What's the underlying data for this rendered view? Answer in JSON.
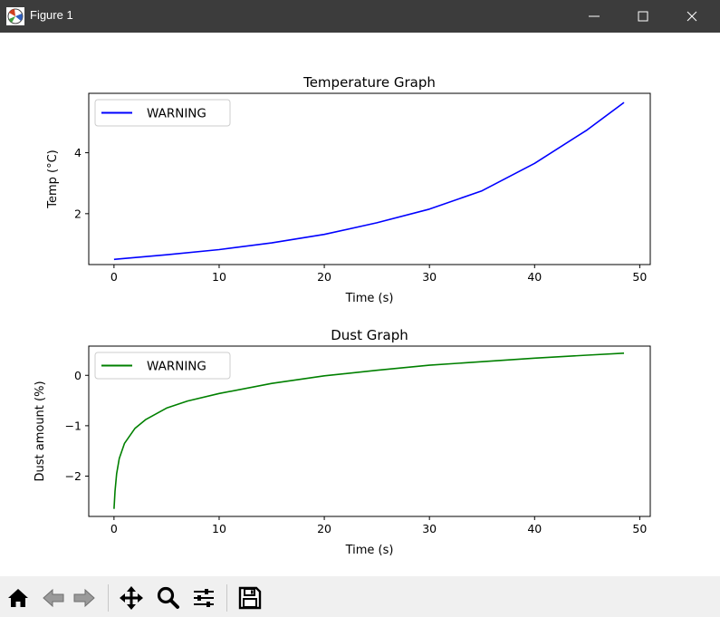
{
  "window": {
    "title": "Figure 1"
  },
  "toolbar": {
    "buttons": [
      {
        "icon": "home-icon",
        "label": "Home"
      },
      {
        "icon": "back-arrow-icon",
        "label": "Back"
      },
      {
        "icon": "forward-arrow-icon",
        "label": "Forward"
      },
      {
        "icon": "pan-icon",
        "label": "Pan"
      },
      {
        "icon": "zoom-icon",
        "label": "Zoom"
      },
      {
        "icon": "configure-subplots-icon",
        "label": "Configure subplots"
      },
      {
        "icon": "save-icon",
        "label": "Save"
      }
    ]
  },
  "chart_data": [
    {
      "type": "line",
      "title": "Temperature Graph",
      "xlabel": "Time (s)",
      "ylabel": "Temp (°C)",
      "xlim": [
        -2.4,
        51
      ],
      "ylim": [
        0.33,
        5.95
      ],
      "xticks": [
        0,
        10,
        20,
        30,
        40,
        50
      ],
      "yticks": [
        2,
        4
      ],
      "grid": false,
      "legend_position": "upper-left",
      "series": [
        {
          "name": "WARNING",
          "color": "#0000ff",
          "x": [
            0,
            5,
            10,
            15,
            20,
            25,
            30,
            35,
            40,
            45,
            48.5
          ],
          "y": [
            0.5,
            0.65,
            0.82,
            1.04,
            1.32,
            1.7,
            2.15,
            2.75,
            3.65,
            4.75,
            5.65
          ]
        }
      ]
    },
    {
      "type": "line",
      "title": "Dust Graph",
      "xlabel": "Time (s)",
      "ylabel": "Dust amount (%)",
      "xlim": [
        -2.4,
        51
      ],
      "ylim": [
        -2.8,
        0.58
      ],
      "xticks": [
        0,
        10,
        20,
        30,
        40,
        50
      ],
      "yticks": [
        -2,
        -1,
        0
      ],
      "grid": false,
      "legend_position": "upper-left",
      "series": [
        {
          "name": "WARNING",
          "color": "#008000",
          "x": [
            0,
            0.1,
            0.25,
            0.5,
            1,
            2,
            3,
            5,
            7,
            10,
            15,
            20,
            25,
            30,
            35,
            40,
            45,
            48.5
          ],
          "y": [
            -2.65,
            -2.3,
            -1.95,
            -1.65,
            -1.35,
            -1.05,
            -0.88,
            -0.65,
            -0.51,
            -0.36,
            -0.16,
            -0.01,
            0.1,
            0.2,
            0.27,
            0.34,
            0.4,
            0.44
          ]
        }
      ]
    }
  ]
}
